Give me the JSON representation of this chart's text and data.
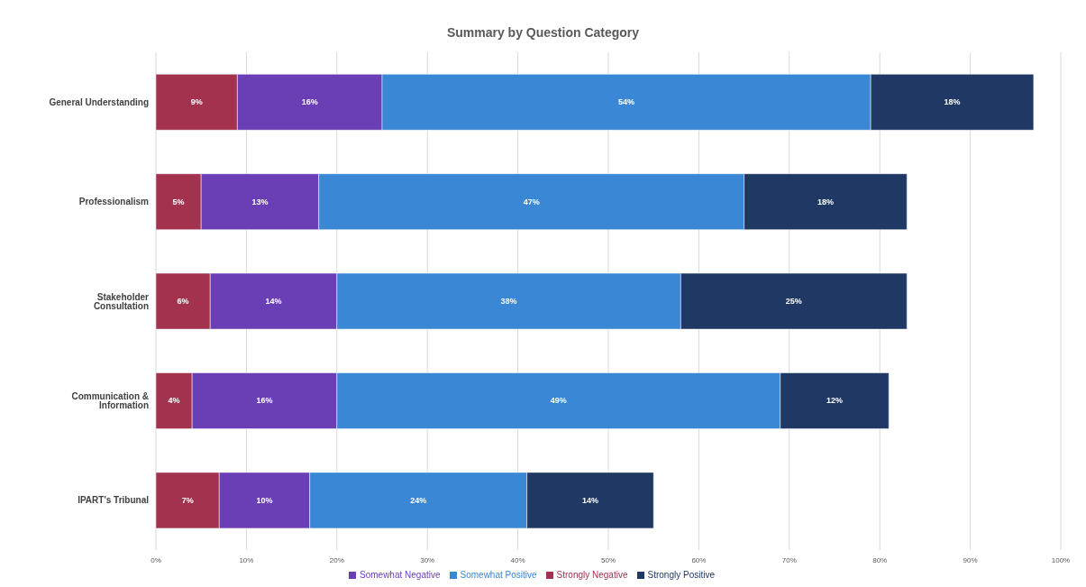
{
  "chart_data": {
    "type": "bar",
    "orientation": "horizontal",
    "stacked": true,
    "title": "Summary by Question Category",
    "categories": [
      "General Understanding",
      "Professionalism",
      "Stakeholder Consultation",
      "Communication & Information",
      "IPART's Tribunal"
    ],
    "series": [
      {
        "name": "Strongly Negative",
        "color": "#a3324f",
        "values": [
          9,
          5,
          6,
          4,
          7
        ],
        "value_labels": [
          "9%",
          "5%",
          "6%",
          "4%",
          "7%"
        ]
      },
      {
        "name": "Somewhat Negative",
        "color": "#6a3fb5",
        "values": [
          16,
          13,
          14,
          16,
          10
        ],
        "value_labels": [
          "16%",
          "13%",
          "14%",
          "16%",
          "10%"
        ]
      },
      {
        "name": "Somewhat Positive",
        "color": "#3a87d6",
        "values": [
          54,
          47,
          38,
          49,
          24
        ],
        "value_labels": [
          "54%",
          "47%",
          "38%",
          "49%",
          "24%"
        ]
      },
      {
        "name": "Strongly Positive",
        "color": "#1f3864",
        "values": [
          18,
          18,
          25,
          12,
          14
        ],
        "value_labels": [
          "18%",
          "18%",
          "25%",
          "12%",
          "14%"
        ]
      }
    ],
    "xlim": [
      0,
      100
    ],
    "xticks": [
      {
        "value": 0,
        "label": "0%"
      },
      {
        "value": 10,
        "label": "10%"
      },
      {
        "value": 20,
        "label": "20%"
      },
      {
        "value": 30,
        "label": "30%"
      },
      {
        "value": 40,
        "label": "40%"
      },
      {
        "value": 50,
        "label": "50%"
      },
      {
        "value": 60,
        "label": "60%"
      },
      {
        "value": 70,
        "label": "70%"
      },
      {
        "value": 80,
        "label": "80%"
      },
      {
        "value": 90,
        "label": "90%"
      },
      {
        "value": 100,
        "label": "100%"
      }
    ],
    "grid": "x",
    "legend": "bottom"
  }
}
